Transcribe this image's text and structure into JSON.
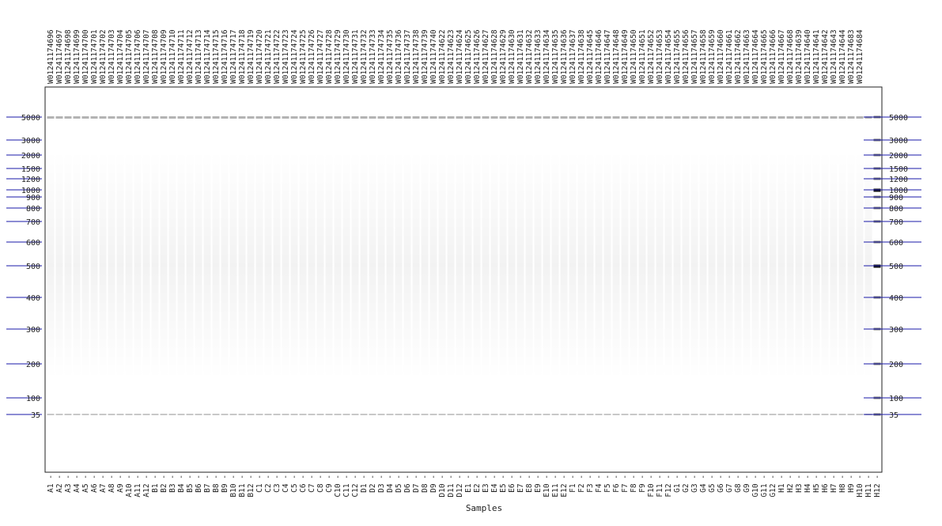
{
  "ids": [
    "W01241174696",
    "W01241174697",
    "W01241174698",
    "W01241174699",
    "W01241174700",
    "W01241174701",
    "W01241174702",
    "W01241174703",
    "W01241174704",
    "W01241174705",
    "W01241174706",
    "W01241174707",
    "W01241174708",
    "W01241174709",
    "W01241174710",
    "W01241174711",
    "W01241174712",
    "W01241174713",
    "W01241174714",
    "W01241174715",
    "W01241174716",
    "W01241174717",
    "W01241174718",
    "W01241174719",
    "W01241174720",
    "W01241174721",
    "W01241174722",
    "W01241174723",
    "W01241174724",
    "W01241174725",
    "W01241174726",
    "W01241174727",
    "W01241174728",
    "W01241174729",
    "W01241174730",
    "W01241174731",
    "W01241174732",
    "W01241174733",
    "W01241174734",
    "W01241174735",
    "W01241174736",
    "W01241174737",
    "W01241174738",
    "W01241174739",
    "W01241174740",
    "W01241174622",
    "W01241174623",
    "W01241174624",
    "W01241174625",
    "W01241174626",
    "W01241174627",
    "W01241174628",
    "W01241174629",
    "W01241174630",
    "W01241174631",
    "W01241174632",
    "W01241174633",
    "W01241174634",
    "W01241174635",
    "W01241174636",
    "W01241174637",
    "W01241174638",
    "W01241174645",
    "W01241174646",
    "W01241174647",
    "W01241174648",
    "W01241174649",
    "W01241174650",
    "W01241174651",
    "W01241174652",
    "W01241174653",
    "W01241174654",
    "W01241174655",
    "W01241174656",
    "W01241174657",
    "W01241174658",
    "W01241174659",
    "W01241174660",
    "W01241174661",
    "W01241174662",
    "W01241174663",
    "W01241174664",
    "W01241174665",
    "W01241174666",
    "W01241174667",
    "W01241174668",
    "W01241174639",
    "W01241174640",
    "W01241174641",
    "W01241174642",
    "W01241174643",
    "W01241174644",
    "W01241174683",
    "W01241174684"
  ],
  "lanes": [
    "A1",
    "A2",
    "A3",
    "A4",
    "A5",
    "A6",
    "A7",
    "A8",
    "A9",
    "A10",
    "A11",
    "A12",
    "B1",
    "B2",
    "B3",
    "B4",
    "B5",
    "B6",
    "B7",
    "B8",
    "B9",
    "B10",
    "B11",
    "B12",
    "C1",
    "C2",
    "C3",
    "C4",
    "C5",
    "C6",
    "C7",
    "C8",
    "C9",
    "C10",
    "C11",
    "C12",
    "D1",
    "D2",
    "D3",
    "D4",
    "D5",
    "D6",
    "D7",
    "D8",
    "D9",
    "D10",
    "D11",
    "D12",
    "E1",
    "E2",
    "E3",
    "E4",
    "E5",
    "E6",
    "E7",
    "E8",
    "E9",
    "E10",
    "E11",
    "E12",
    "F1",
    "F2",
    "F3",
    "F4",
    "F5",
    "F6",
    "F7",
    "F8",
    "F9",
    "F10",
    "F11",
    "F12",
    "G1",
    "G2",
    "G3",
    "G4",
    "G5",
    "G6",
    "G7",
    "G8",
    "G9",
    "G10",
    "G11",
    "G12",
    "H1",
    "H2",
    "H3",
    "H4",
    "H5",
    "H6",
    "H7",
    "H8",
    "H9",
    "H10",
    "H11",
    "H12"
  ],
  "size_markers": [
    "5000",
    "3000",
    "2000",
    "1500",
    "1200",
    "1000",
    "900",
    "800",
    "700",
    "600",
    "500",
    "400",
    "300",
    "200",
    "100",
    "35"
  ],
  "xlabel": "Samples",
  "colors": {
    "marker_line": "#1a1aa8",
    "band": "#9a9a9a",
    "ladder_dark": "#111111",
    "frame": "#222222",
    "background": "#ffffff"
  }
}
